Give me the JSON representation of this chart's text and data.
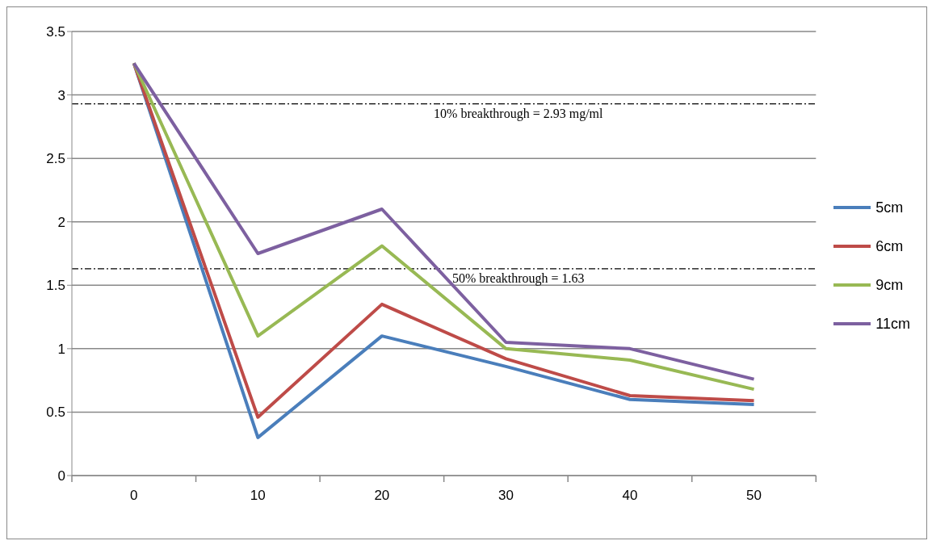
{
  "chart_data": {
    "type": "line",
    "categories": [
      "0",
      "10",
      "20",
      "30",
      "40",
      "50"
    ],
    "series": [
      {
        "name": "5cm",
        "color": "#4a7ebb",
        "values": [
          3.25,
          0.3,
          1.1,
          0.86,
          0.6,
          0.56
        ]
      },
      {
        "name": "6cm",
        "color": "#be4b48",
        "values": [
          3.25,
          0.46,
          1.35,
          0.92,
          0.63,
          0.59
        ]
      },
      {
        "name": "9cm",
        "color": "#98b954",
        "values": [
          3.25,
          1.1,
          1.81,
          1.0,
          0.91,
          0.68
        ]
      },
      {
        "name": "11cm",
        "color": "#7d60a0",
        "values": [
          3.25,
          1.75,
          2.1,
          1.05,
          1.0,
          0.76
        ]
      }
    ],
    "ylim": [
      0,
      3.5
    ],
    "yticks": [
      0,
      0.5,
      1,
      1.5,
      2,
      2.5,
      3,
      3.5
    ],
    "grid": "y",
    "legend": "right",
    "marker": "none",
    "line_style": "solid",
    "ref_lines": [
      {
        "axis": "y",
        "value": 2.93,
        "label": "10% breakthrough = 2.93 mg/ml",
        "color": "#000000",
        "line_style": "dashdot"
      },
      {
        "axis": "y",
        "value": 1.63,
        "label": "50% breakthrough = 1.63",
        "color": "#000000",
        "line_style": "dashdot"
      }
    ]
  }
}
